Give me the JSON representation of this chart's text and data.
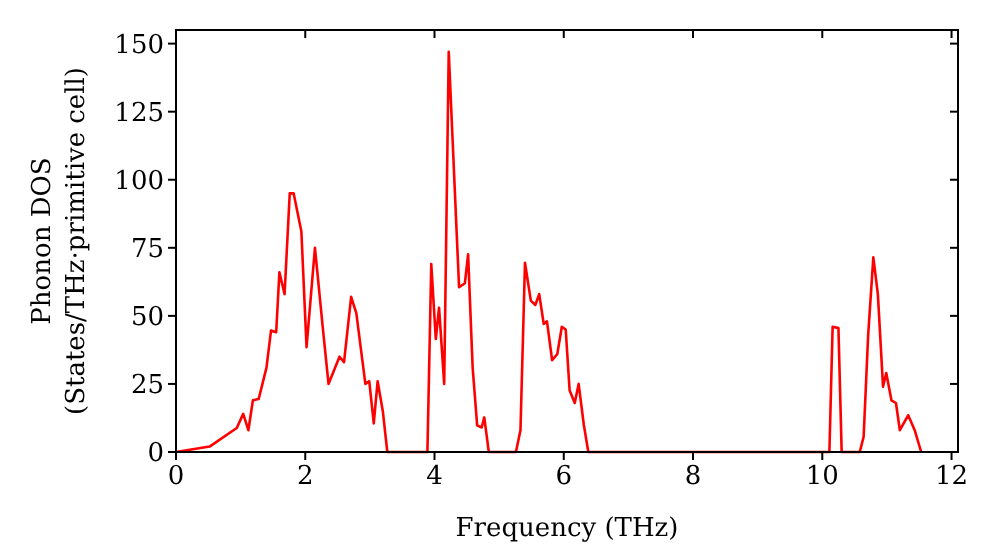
{
  "chart_data": {
    "type": "line",
    "xlabel": "Frequency (THz)",
    "ylabel": "Phonon DOS\n(States/THz·primitive cell)",
    "x": [
      0,
      0.52,
      0.94,
      1.04,
      1.12,
      1.19,
      1.28,
      1.4,
      1.47,
      1.55,
      1.6,
      1.68,
      1.76,
      1.82,
      1.94,
      2.02,
      2.15,
      2.27,
      2.36,
      2.53,
      2.6,
      2.71,
      2.79,
      2.93,
      2.99,
      3.06,
      3.12,
      3.2,
      3.27,
      3.89,
      3.95,
      4.02,
      4.07,
      4.15,
      4.22,
      4.38,
      4.47,
      4.52,
      4.59,
      4.66,
      4.73,
      4.77,
      4.84,
      5.26,
      5.33,
      5.4,
      5.49,
      5.56,
      5.62,
      5.69,
      5.74,
      5.82,
      5.9,
      5.97,
      6.03,
      6.09,
      6.17,
      6.23,
      6.31,
      6.38,
      10.11,
      10.16,
      10.25,
      10.3,
      10.58,
      10.64,
      10.71,
      10.79,
      10.86,
      10.94,
      10.99,
      11.07,
      11.14,
      11.2,
      11.33,
      11.43,
      11.53
    ],
    "series": [
      {
        "color": "#ff0000",
        "values": [
          0,
          2,
          8.8,
          14,
          8,
          19,
          19.5,
          31,
          44.6,
          44,
          66,
          58,
          95,
          95,
          81,
          38.5,
          75,
          46,
          25,
          35,
          33,
          57,
          51,
          25,
          26,
          10.5,
          26,
          15,
          0,
          0,
          69,
          41.5,
          53,
          25,
          147,
          60.5,
          62,
          72.6,
          31,
          9.8,
          9,
          12.7,
          0,
          0,
          8,
          69.5,
          55.6,
          54,
          58,
          47,
          48,
          33.7,
          36,
          46,
          45,
          22.7,
          18,
          25,
          10,
          0,
          0,
          46,
          45.5,
          0,
          0,
          5.6,
          43,
          71.5,
          58,
          24,
          29,
          19,
          18,
          8,
          13.5,
          8,
          0
        ]
      }
    ],
    "xlim": [
      0,
      12.1
    ],
    "ylim": [
      0,
      155
    ],
    "xticks": [
      0,
      2,
      4,
      6,
      8,
      10,
      12
    ],
    "yticks": [
      0,
      25,
      50,
      75,
      100,
      125,
      150
    ],
    "grid": false,
    "marker": "none",
    "line_style": "solid"
  }
}
